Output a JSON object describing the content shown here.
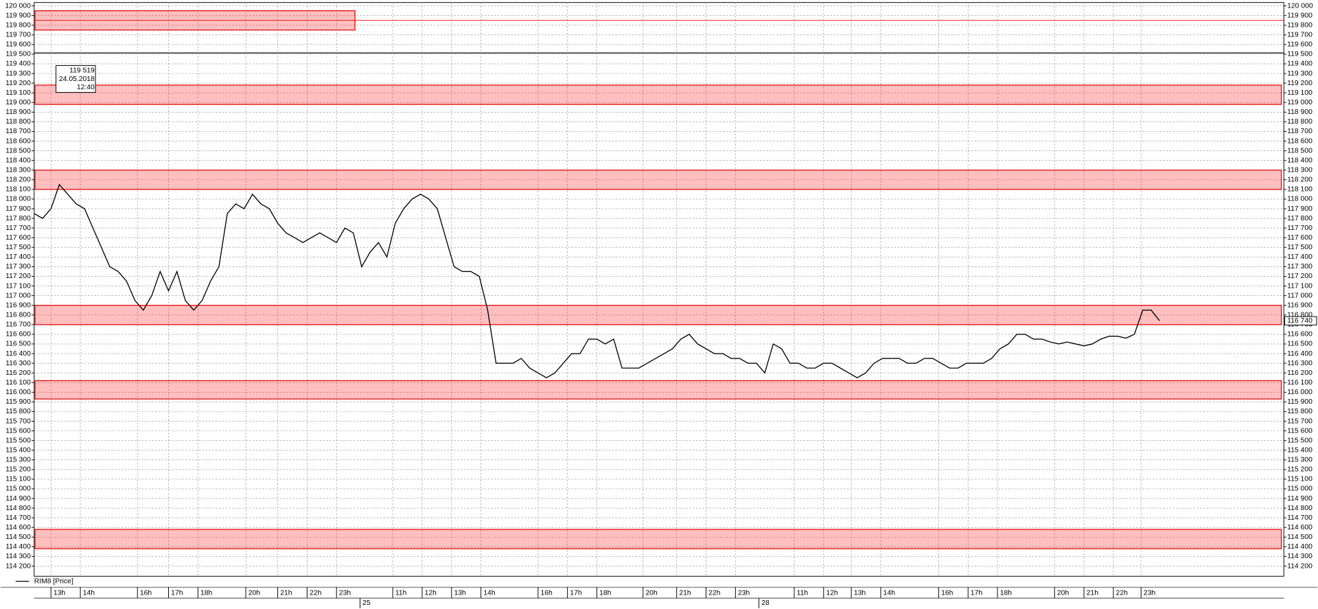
{
  "chart_data": {
    "type": "line",
    "legend": "RIM8 [Price]",
    "color": "#000000",
    "tooltip": {
      "price": "119 519",
      "date": "24.05.2018",
      "time": "12:40"
    },
    "last_price": {
      "value": 116740,
      "label": "116 740"
    },
    "values": [
      117850,
      117800,
      117900,
      118150,
      118050,
      117950,
      117900,
      117700,
      117500,
      117300,
      117250,
      117150,
      116950,
      116850,
      117000,
      117250,
      117050,
      117250,
      116950,
      116850,
      116950,
      117150,
      117300,
      117850,
      117950,
      117900,
      118050,
      117950,
      117900,
      117750,
      117650,
      117600,
      117550,
      117600,
      117650,
      117600,
      117550,
      117700,
      117650,
      117300,
      117450,
      117550,
      117400,
      117750,
      117900,
      118000,
      118050,
      118000,
      117900,
      117600,
      117300,
      117250,
      117250,
      117200,
      116850,
      116300,
      116300,
      116300,
      116350,
      116250,
      116200,
      116150,
      116200,
      116300,
      116400,
      116400,
      116550,
      116550,
      116500,
      116550,
      116250,
      116250,
      116250,
      116300,
      116350,
      116400,
      116450,
      116550,
      116600,
      116500,
      116450,
      116400,
      116400,
      116350,
      116350,
      116300,
      116300,
      116200,
      116500,
      116450,
      116300,
      116300,
      116250,
      116250,
      116300,
      116300,
      116250,
      116200,
      116150,
      116200,
      116300,
      116350,
      116350,
      116350,
      116300,
      116300,
      116350,
      116350,
      116300,
      116250,
      116250,
      116300,
      116300,
      116300,
      116350,
      116450,
      116500,
      116600,
      116600,
      116550,
      116550,
      116520,
      116500,
      116520,
      116500,
      116480,
      116500,
      116550,
      116580,
      116580,
      116560,
      116600,
      116850,
      116850,
      116740
    ],
    "zones": [
      {
        "low": 119750,
        "high": 119950,
        "x_end": 38.2
      },
      {
        "low": 118980,
        "high": 119180
      },
      {
        "low": 118100,
        "high": 118300
      },
      {
        "low": 116700,
        "high": 116900
      },
      {
        "low": 115930,
        "high": 116120
      },
      {
        "low": 114380,
        "high": 114580
      }
    ],
    "levels": [
      119850
    ],
    "xlim": [
      0,
      148.8
    ],
    "xticks": [
      {
        "value": 2,
        "label": "13h"
      },
      {
        "value": 5.5,
        "label": "14h"
      },
      {
        "value": 12.3,
        "label": "16h"
      },
      {
        "value": 16,
        "label": "17h"
      },
      {
        "value": 19.5,
        "label": "18h"
      },
      {
        "value": 25.2,
        "label": "20h"
      },
      {
        "value": 29,
        "label": "21h"
      },
      {
        "value": 32.5,
        "label": "22h"
      },
      {
        "value": 36,
        "label": "23h"
      },
      {
        "value": 42.7,
        "label": "11h"
      },
      {
        "value": 46.2,
        "label": "12h"
      },
      {
        "value": 49.7,
        "label": "13h"
      },
      {
        "value": 53.2,
        "label": "14h"
      },
      {
        "value": 60,
        "label": "16h"
      },
      {
        "value": 63.5,
        "label": "17h"
      },
      {
        "value": 67,
        "label": "18h"
      },
      {
        "value": 72.5,
        "label": "20h"
      },
      {
        "value": 76.5,
        "label": "21h"
      },
      {
        "value": 80,
        "label": "22h"
      },
      {
        "value": 83.5,
        "label": "23h"
      },
      {
        "value": 90.5,
        "label": "11h"
      },
      {
        "value": 94,
        "label": "12h"
      },
      {
        "value": 97.3,
        "label": "13h"
      },
      {
        "value": 100.8,
        "label": "14h"
      },
      {
        "value": 107.7,
        "label": "16h"
      },
      {
        "value": 111.2,
        "label": "17h"
      },
      {
        "value": 114.7,
        "label": "18h"
      },
      {
        "value": 121.5,
        "label": "20h"
      },
      {
        "value": 125,
        "label": "21h"
      },
      {
        "value": 128.5,
        "label": "22h"
      },
      {
        "value": 131.8,
        "label": "23h"
      }
    ],
    "date_ticks": [
      {
        "value": 38.8,
        "label": "25"
      },
      {
        "value": 86.3,
        "label": "28"
      }
    ],
    "ylim": [
      114095,
      120035
    ],
    "yticks": [
      {
        "value": 114200,
        "label": "114 200"
      },
      {
        "value": 114300,
        "label": "114 300"
      },
      {
        "value": 114400,
        "label": "114 400"
      },
      {
        "value": 114500,
        "label": "114 500"
      },
      {
        "value": 114600,
        "label": "114 600"
      },
      {
        "value": 114700,
        "label": "114 700"
      },
      {
        "value": 114800,
        "label": "114 800"
      },
      {
        "value": 114900,
        "label": "114 900"
      },
      {
        "value": 115000,
        "label": "115 000"
      },
      {
        "value": 115100,
        "label": "115 100"
      },
      {
        "value": 115200,
        "label": "115 200"
      },
      {
        "value": 115300,
        "label": "115 300"
      },
      {
        "value": 115400,
        "label": "115 400"
      },
      {
        "value": 115500,
        "label": "115 500"
      },
      {
        "value": 115600,
        "label": "115 600"
      },
      {
        "value": 115700,
        "label": "115 700"
      },
      {
        "value": 115800,
        "label": "115 800"
      },
      {
        "value": 115900,
        "label": "115 900"
      },
      {
        "value": 116000,
        "label": "116 000"
      },
      {
        "value": 116100,
        "label": "116 100"
      },
      {
        "value": 116200,
        "label": "116 200"
      },
      {
        "value": 116300,
        "label": "116 300"
      },
      {
        "value": 116400,
        "label": "116 400"
      },
      {
        "value": 116500,
        "label": "116 500"
      },
      {
        "value": 116600,
        "label": "116 600"
      },
      {
        "value": 116700,
        "label": "116 700"
      },
      {
        "value": 116800,
        "label": "116 800"
      },
      {
        "value": 116900,
        "label": "116 900"
      },
      {
        "value": 117000,
        "label": "117 000"
      },
      {
        "value": 117100,
        "label": "117 100"
      },
      {
        "value": 117200,
        "label": "117 200"
      },
      {
        "value": 117300,
        "label": "117 300"
      },
      {
        "value": 117400,
        "label": "117 400"
      },
      {
        "value": 117500,
        "label": "117 500"
      },
      {
        "value": 117600,
        "label": "117 600"
      },
      {
        "value": 117700,
        "label": "117 700"
      },
      {
        "value": 117800,
        "label": "117 800"
      },
      {
        "value": 117900,
        "label": "117 900"
      },
      {
        "value": 118000,
        "label": "118 000"
      },
      {
        "value": 118100,
        "label": "118 100"
      },
      {
        "value": 118200,
        "label": "118 200"
      },
      {
        "value": 118300,
        "label": "118 300"
      },
      {
        "value": 118400,
        "label": "118 400"
      },
      {
        "value": 118500,
        "label": "118 500"
      },
      {
        "value": 118600,
        "label": "118 600"
      },
      {
        "value": 118700,
        "label": "118 700"
      },
      {
        "value": 118800,
        "label": "118 800"
      },
      {
        "value": 118900,
        "label": "118 900"
      },
      {
        "value": 119000,
        "label": "119 000"
      },
      {
        "value": 119100,
        "label": "119 100"
      },
      {
        "value": 119200,
        "label": "119 200"
      },
      {
        "value": 119300,
        "label": "119 300"
      },
      {
        "value": 119400,
        "label": "119 400"
      },
      {
        "value": 119500,
        "label": "119 500"
      },
      {
        "value": 119600,
        "label": "119 600"
      },
      {
        "value": 119700,
        "label": "119 700"
      },
      {
        "value": 119800,
        "label": "119 800"
      },
      {
        "value": 119900,
        "label": "119 900"
      },
      {
        "value": 120000,
        "label": "120 000"
      }
    ],
    "grid": true
  }
}
